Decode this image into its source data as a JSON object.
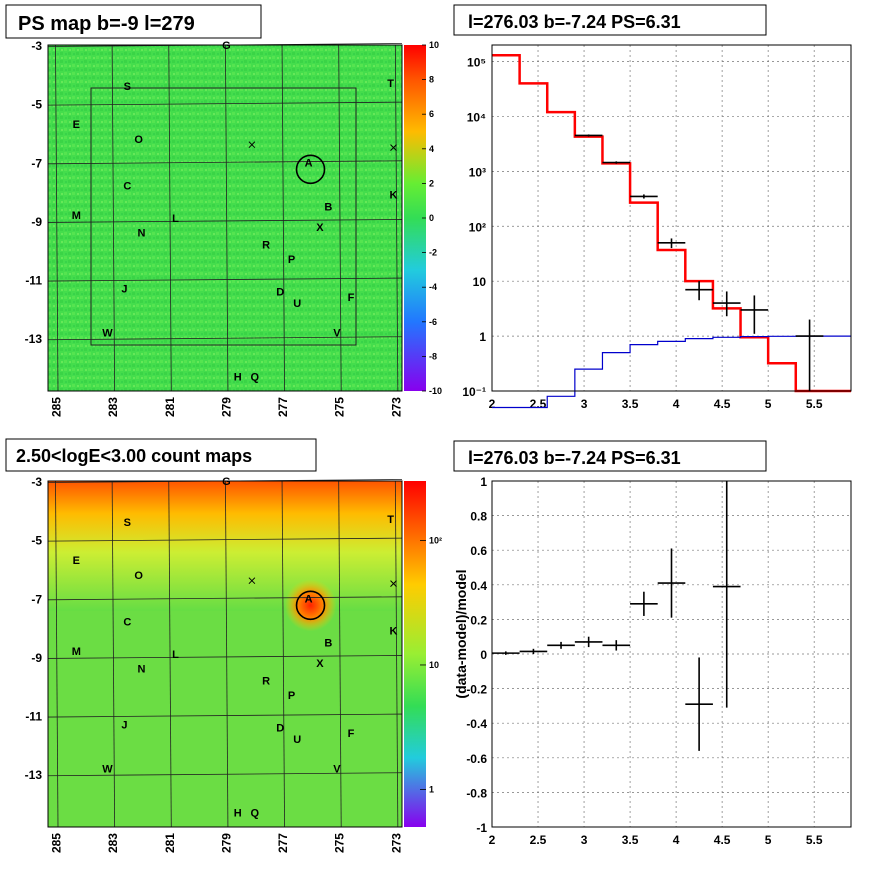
{
  "panels": {
    "ps_map_title": "PS map b=-9 l=279",
    "spectrum_title": "l=276.03 b=-7.24 PS=6.31",
    "count_map_title": "2.50<logE<3.00 count maps",
    "residual_title": "l=276.03 b=-7.24 PS=6.31"
  },
  "colors": {
    "data": "#000000",
    "model_total": "#ff0000",
    "model_source": "#0000cc",
    "grid": "#888888",
    "map_green": "#33dd44",
    "map_red": "#ff3300"
  },
  "sky_maps": {
    "b_tick_labels": [
      "-3",
      "-5",
      "-7",
      "-9",
      "-11",
      "-13"
    ],
    "b_ticks": [
      -3,
      -5,
      -7,
      -9,
      -11,
      -13
    ],
    "l_tick_labels": [
      "285",
      "283",
      "281",
      "279",
      "277",
      "275",
      "273"
    ],
    "l_ticks": [
      285,
      283,
      281,
      279,
      277,
      275,
      273
    ],
    "l_range": [
      285.3,
      272.8
    ],
    "b_range": [
      -3.0,
      -14.8
    ],
    "sources": [
      {
        "label": "G",
        "l": 279.0,
        "b": -3.0
      },
      {
        "label": "S",
        "l": 282.5,
        "b": -4.4
      },
      {
        "label": "T",
        "l": 273.2,
        "b": -4.3
      },
      {
        "label": "E",
        "l": 284.3,
        "b": -5.7
      },
      {
        "label": "O",
        "l": 282.1,
        "b": -6.2
      },
      {
        "label": "A",
        "l": 276.1,
        "b": -7.0
      },
      {
        "label": "C",
        "l": 282.5,
        "b": -7.8
      },
      {
        "label": "K",
        "l": 273.1,
        "b": -8.1
      },
      {
        "label": "B",
        "l": 275.4,
        "b": -8.5
      },
      {
        "label": "M",
        "l": 284.3,
        "b": -8.8
      },
      {
        "label": "L",
        "l": 280.8,
        "b": -8.9
      },
      {
        "label": "X",
        "l": 275.7,
        "b": -9.2
      },
      {
        "label": "N",
        "l": 282.0,
        "b": -9.4
      },
      {
        "label": "R",
        "l": 277.6,
        "b": -9.8
      },
      {
        "label": "P",
        "l": 276.7,
        "b": -10.3
      },
      {
        "label": "J",
        "l": 282.6,
        "b": -11.3
      },
      {
        "label": "D",
        "l": 277.1,
        "b": -11.4
      },
      {
        "label": "F",
        "l": 274.6,
        "b": -11.6
      },
      {
        "label": "U",
        "l": 276.5,
        "b": -11.8
      },
      {
        "label": "W",
        "l": 283.2,
        "b": -12.8
      },
      {
        "label": "V",
        "l": 275.1,
        "b": -12.8
      },
      {
        "label": "H",
        "l": 278.6,
        "b": -14.3
      },
      {
        "label": "Q",
        "l": 278.0,
        "b": -14.3
      }
    ],
    "crosses": [
      {
        "l": 278.1,
        "b": -6.4
      },
      {
        "l": 273.1,
        "b": -6.5
      }
    ],
    "circle_center": {
      "l": 276.03,
      "b": -7.24
    }
  },
  "ps_colorbar": {
    "labels": [
      "10",
      "8",
      "6",
      "4",
      "2",
      "0",
      "-2",
      "-4",
      "-6",
      "-8",
      "-10"
    ],
    "values": [
      10,
      8,
      6,
      4,
      2,
      0,
      -2,
      -4,
      -6,
      -8,
      -10
    ],
    "range": [
      -10,
      10
    ]
  },
  "count_colorbar": {
    "labels": [
      "10²",
      "10",
      "1"
    ],
    "values": [
      100,
      10,
      1
    ],
    "range": [
      0.5,
      300
    ]
  },
  "chart_data": [
    {
      "type": "line",
      "title": "l=276.03 b=-7.24 PS=6.31",
      "xlabel": "",
      "ylabel": "",
      "xlim": [
        2.0,
        5.9
      ],
      "ylim": [
        0.1,
        200000
      ],
      "y_scale": "log",
      "x_tick_labels": [
        "2",
        "2.5",
        "3",
        "3.5",
        "4",
        "4.5",
        "5",
        "5.5"
      ],
      "x_ticks": [
        2,
        2.5,
        3,
        3.5,
        4,
        4.5,
        5,
        5.5
      ],
      "y_tick_labels": [
        "10⁻¹",
        "1",
        "10",
        "10²",
        "10³",
        "10⁴",
        "10⁵"
      ],
      "y_ticks": [
        0.1,
        1,
        10,
        100,
        1000,
        10000,
        100000
      ],
      "grid": true,
      "bin_edges": [
        2.0,
        2.3,
        2.6,
        2.9,
        3.2,
        3.5,
        3.8,
        4.1,
        4.4,
        4.7,
        5.0,
        5.3,
        5.6,
        5.9
      ],
      "series": [
        {
          "role": "model_total",
          "values": [
            130000,
            40000,
            12000,
            4300,
            1400,
            270,
            37,
            10,
            3.2,
            0.95,
            0.32,
            0.1,
            0.1
          ]
        },
        {
          "role": "model_source",
          "values": [
            0.05,
            0.05,
            0.08,
            0.25,
            0.5,
            0.7,
            0.8,
            0.9,
            0.95,
            0.98,
            0.99,
            1.0,
            1.0
          ]
        },
        {
          "role": "data",
          "points": [
            {
              "x": 3.05,
              "y": 4500,
              "lo": 4300,
              "hi": 4700
            },
            {
              "x": 3.35,
              "y": 1450,
              "lo": 1380,
              "hi": 1520
            },
            {
              "x": 3.65,
              "y": 350,
              "lo": 320,
              "hi": 380
            },
            {
              "x": 3.95,
              "y": 50,
              "lo": 40,
              "hi": 60
            },
            {
              "x": 4.25,
              "y": 7,
              "lo": 4.5,
              "hi": 10
            },
            {
              "x": 4.55,
              "y": 4,
              "lo": 2.3,
              "hi": 6.5
            },
            {
              "x": 4.85,
              "y": 3,
              "lo": 1.1,
              "hi": 5.5
            },
            {
              "x": 5.45,
              "y": 1,
              "lo": 0.1,
              "hi": 2
            }
          ]
        }
      ]
    },
    {
      "type": "scatter",
      "title": "l=276.03 b=-7.24 PS=6.31",
      "xlabel": "",
      "ylabel": "(data-model)/model",
      "xlim": [
        2.0,
        5.9
      ],
      "ylim": [
        -1.0,
        1.0
      ],
      "x_tick_labels": [
        "2",
        "2.5",
        "3",
        "3.5",
        "4",
        "4.5",
        "5",
        "5.5"
      ],
      "x_ticks": [
        2,
        2.5,
        3,
        3.5,
        4,
        4.5,
        5,
        5.5
      ],
      "y_tick_labels": [
        "1",
        "0.8",
        "0.6",
        "0.4",
        "0.2",
        "0",
        "-0.2",
        "-0.4",
        "-0.6",
        "-0.8",
        "-1"
      ],
      "y_ticks": [
        1,
        0.8,
        0.6,
        0.4,
        0.2,
        0,
        -0.2,
        -0.4,
        -0.6,
        -0.8,
        -1
      ],
      "grid": true,
      "points": [
        {
          "x": 2.15,
          "y": 0.005,
          "xerr": 0.15,
          "yerr": 0.01
        },
        {
          "x": 2.45,
          "y": 0.015,
          "xerr": 0.15,
          "yerr": 0.015
        },
        {
          "x": 2.75,
          "y": 0.05,
          "xerr": 0.15,
          "yerr": 0.02
        },
        {
          "x": 3.05,
          "y": 0.07,
          "xerr": 0.15,
          "yerr": 0.03
        },
        {
          "x": 3.35,
          "y": 0.05,
          "xerr": 0.15,
          "yerr": 0.03
        },
        {
          "x": 3.65,
          "y": 0.29,
          "xerr": 0.15,
          "yerr": 0.07
        },
        {
          "x": 3.95,
          "y": 0.41,
          "xerr": 0.15,
          "yerr": 0.2
        },
        {
          "x": 4.25,
          "y": -0.29,
          "xerr": 0.15,
          "yerr": 0.27
        },
        {
          "x": 4.55,
          "y": 0.39,
          "xerr": 0.15,
          "yerr": 0.7
        }
      ]
    }
  ]
}
